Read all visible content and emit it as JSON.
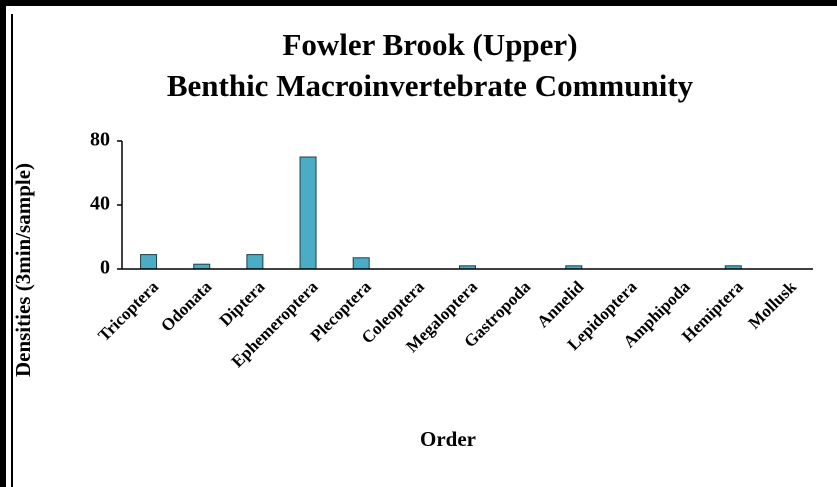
{
  "chart_data": {
    "type": "bar",
    "title": [
      "Fowler Brook (Upper)",
      "Benthic Macroinvertebrate Community"
    ],
    "x_label": "Order",
    "y_label": "Densities (3min/sample)",
    "categories": [
      "Tricoptera",
      "Odonata",
      "Diptera",
      "Ephemeroptera",
      "Plecoptera",
      "Coleoptera",
      "Megaloptera",
      "Gastropoda",
      "Annelid",
      "Lepidoptera",
      "Amphipoda",
      "Hemiptera",
      "Mollusk"
    ],
    "values": [
      9,
      3,
      9,
      70,
      7,
      0,
      2,
      0,
      2,
      0,
      0,
      2,
      0
    ],
    "color": "#4bacc6",
    "ylim": [
      0,
      80
    ],
    "yticks": [
      0,
      40,
      80
    ],
    "grid": false
  }
}
